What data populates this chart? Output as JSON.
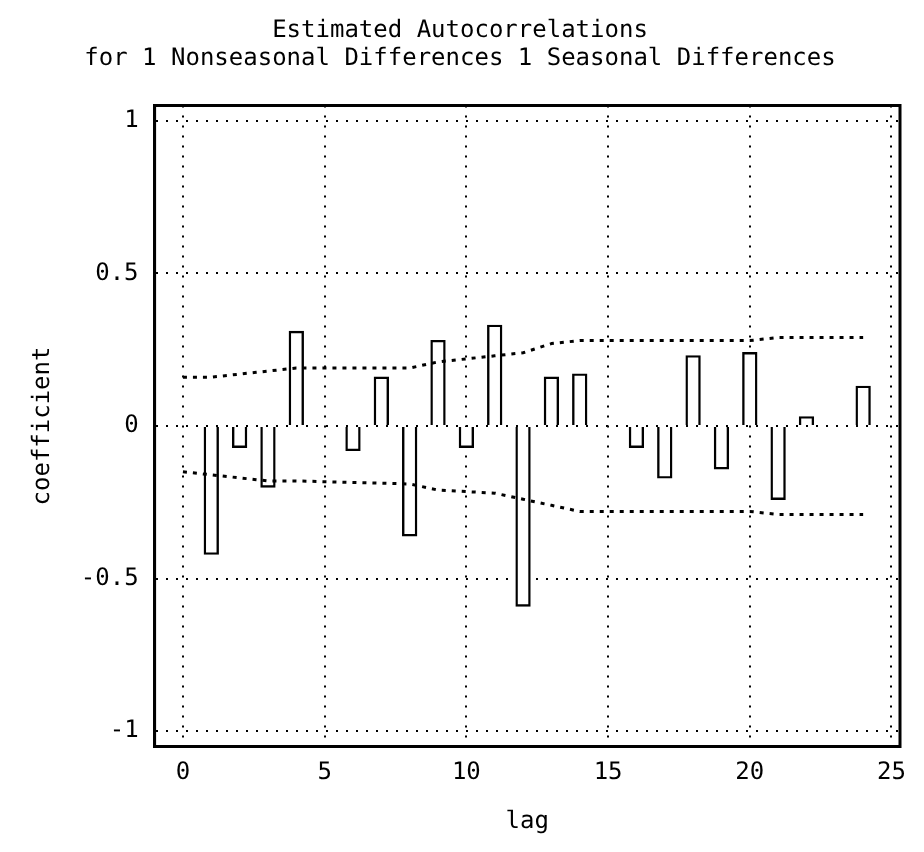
{
  "chart_data": {
    "type": "bar",
    "title": "Estimated Autocorrelations",
    "subtitle": "for 1 Nonseasonal Differences 1 Seasonal Differences",
    "xlabel": "lag",
    "ylabel": "coefficient",
    "xlim": [
      -1,
      25.3
    ],
    "xticks": [
      0,
      5,
      10,
      15,
      20,
      25
    ],
    "ylim": [
      -1.05,
      1.05
    ],
    "yticks": [
      -1,
      -0.5,
      0,
      0.5,
      1
    ],
    "grid": true,
    "legend": false,
    "series": [
      {
        "color": "#ffffff",
        "x": [
          1,
          2,
          3,
          4,
          5,
          6,
          7,
          8,
          9,
          10,
          11,
          12,
          13,
          14,
          15,
          16,
          17,
          18,
          19,
          20,
          21,
          22,
          23,
          24
        ],
        "values": [
          -0.42,
          -0.07,
          -0.2,
          0.31,
          0,
          -0.08,
          0.16,
          -0.36,
          0.28,
          -0.07,
          0.33,
          -0.59,
          0.16,
          0.17,
          0,
          -0.07,
          -0.17,
          0.23,
          -0.14,
          0.24,
          -0.24,
          0.03,
          0,
          0.13
        ]
      },
      {
        "type": "line",
        "color": "#000000",
        "line_style": "dotted",
        "marker": "none",
        "x": [
          0,
          1,
          3,
          4,
          8,
          9,
          11,
          12,
          13,
          14,
          20,
          21,
          24
        ],
        "values": [
          0.16,
          0.16,
          0.18,
          0.19,
          0.19,
          0.21,
          0.23,
          0.24,
          0.27,
          0.28,
          0.28,
          0.29,
          0.29
        ]
      },
      {
        "type": "line",
        "color": "#000000",
        "line_style": "dotted",
        "marker": "none",
        "x": [
          0,
          1,
          3,
          4,
          8,
          9,
          11,
          12,
          13,
          14,
          20,
          21,
          24
        ],
        "values": [
          -0.15,
          -0.16,
          -0.18,
          -0.18,
          -0.19,
          -0.21,
          -0.22,
          -0.24,
          -0.26,
          -0.28,
          -0.28,
          -0.29,
          -0.29
        ]
      }
    ]
  }
}
